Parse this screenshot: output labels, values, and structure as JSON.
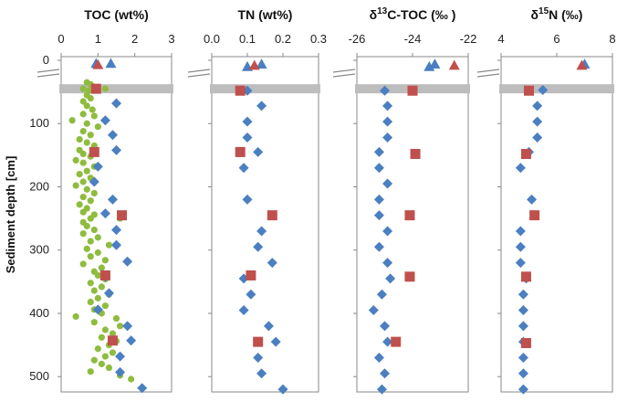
{
  "chart_data": {
    "type": "scatter",
    "ylabel": "Sediment depth [cm]",
    "ylim": [
      0,
      530
    ],
    "yticks": [
      "0",
      "100",
      "200",
      "300",
      "400",
      "500"
    ],
    "ytick_values": [
      0,
      100,
      200,
      300,
      400,
      500
    ],
    "band_depth": 45,
    "panels": [
      {
        "id": "toc",
        "title": "TOC (wt%)",
        "xlim": [
          0,
          3
        ],
        "xtick_values": [
          0,
          1,
          2,
          3
        ],
        "xticks": [
          "0",
          "1",
          "2",
          "3"
        ],
        "series": [
          {
            "name": "green-dots",
            "marker": "circle",
            "color": "#8fbc3f",
            "points": [
              [
                0.7,
                35
              ],
              [
                0.8,
                38
              ],
              [
                0.9,
                42
              ],
              [
                0.6,
                45
              ],
              [
                0.75,
                48
              ],
              [
                1.2,
                45
              ],
              [
                0.7,
                55
              ],
              [
                0.8,
                60
              ],
              [
                0.6,
                65
              ],
              [
                0.7,
                72
              ],
              [
                0.85,
                78
              ],
              [
                0.6,
                85
              ],
              [
                0.9,
                88
              ],
              [
                0.3,
                95
              ],
              [
                0.7,
                100
              ],
              [
                1.0,
                105
              ],
              [
                0.6,
                112
              ],
              [
                0.8,
                118
              ],
              [
                0.5,
                125
              ],
              [
                0.7,
                130
              ],
              [
                0.9,
                135
              ],
              [
                0.5,
                142
              ],
              [
                0.6,
                148
              ],
              [
                0.8,
                152
              ],
              [
                0.4,
                158
              ],
              [
                0.6,
                162
              ],
              [
                0.9,
                168
              ],
              [
                0.7,
                175
              ],
              [
                0.5,
                180
              ],
              [
                0.8,
                186
              ],
              [
                0.6,
                192
              ],
              [
                0.4,
                198
              ],
              [
                0.7,
                204
              ],
              [
                0.9,
                210
              ],
              [
                0.6,
                216
              ],
              [
                0.8,
                222
              ],
              [
                0.5,
                228
              ],
              [
                0.7,
                234
              ],
              [
                0.6,
                240
              ],
              [
                0.9,
                244
              ],
              [
                0.8,
                250
              ],
              [
                0.6,
                256
              ],
              [
                1.6,
                250
              ],
              [
                0.7,
                262
              ],
              [
                0.9,
                268
              ],
              [
                0.6,
                274
              ],
              [
                1.0,
                280
              ],
              [
                0.8,
                286
              ],
              [
                1.3,
                292
              ],
              [
                0.7,
                298
              ],
              [
                1.0,
                304
              ],
              [
                0.8,
                310
              ],
              [
                1.2,
                316
              ],
              [
                0.6,
                322
              ],
              [
                1.1,
                328
              ],
              [
                0.9,
                334
              ],
              [
                1.0,
                340
              ],
              [
                1.2,
                346
              ],
              [
                0.8,
                352
              ],
              [
                1.1,
                358
              ],
              [
                0.9,
                364
              ],
              [
                1.3,
                370
              ],
              [
                1.0,
                376
              ],
              [
                0.8,
                382
              ],
              [
                1.2,
                388
              ],
              [
                0.9,
                394
              ],
              [
                0.4,
                405
              ],
              [
                1.1,
                400
              ],
              [
                1.5,
                408
              ],
              [
                0.9,
                414
              ],
              [
                1.6,
                420
              ],
              [
                1.2,
                426
              ],
              [
                1.4,
                432
              ],
              [
                1.1,
                438
              ],
              [
                1.5,
                444
              ],
              [
                1.3,
                450
              ],
              [
                1.0,
                456
              ],
              [
                1.4,
                462
              ],
              [
                1.2,
                468
              ],
              [
                0.9,
                474
              ],
              [
                1.1,
                480
              ],
              [
                1.3,
                486
              ],
              [
                0.8,
                492
              ],
              [
                1.6,
                498
              ],
              [
                1.9,
                504
              ]
            ]
          },
          {
            "name": "blue-diamonds",
            "marker": "diamond",
            "color": "#4a7fc1",
            "points": [
              [
                1.5,
                68
              ],
              [
                1.2,
                95
              ],
              [
                1.4,
                118
              ],
              [
                1.5,
                142
              ],
              [
                1.0,
                168
              ],
              [
                0.9,
                192
              ],
              [
                1.4,
                220
              ],
              [
                1.2,
                242
              ],
              [
                1.5,
                268
              ],
              [
                1.5,
                292
              ],
              [
                1.8,
                318
              ],
              [
                1.2,
                342
              ],
              [
                1.3,
                368
              ],
              [
                1.0,
                394
              ],
              [
                1.8,
                420
              ],
              [
                1.9,
                443
              ],
              [
                1.6,
                468
              ],
              [
                1.6,
                493
              ],
              [
                2.2,
                518
              ]
            ]
          },
          {
            "name": "red-squares",
            "marker": "square",
            "color": "#c0504d",
            "points": [
              [
                0.95,
                45
              ],
              [
                0.9,
                145
              ],
              [
                1.65,
                245
              ],
              [
                1.2,
                340
              ],
              [
                1.4,
                443
              ]
            ]
          },
          {
            "name": "blue-triangles",
            "marker": "triangle",
            "color": "#4a7fc1",
            "points": [
              [
                0.95,
                5
              ],
              [
                1.35,
                5
              ]
            ]
          },
          {
            "name": "red-triangles",
            "marker": "triangle",
            "color": "#c0504d",
            "points": [
              [
                1.0,
                7
              ]
            ]
          }
        ]
      },
      {
        "id": "tn",
        "title": "TN (wt%)",
        "xlim": [
          0,
          0.3
        ],
        "xtick_values": [
          0,
          0.1,
          0.2,
          0.3
        ],
        "xticks": [
          "0.0",
          "0.1",
          "0.2",
          "0.3"
        ],
        "series": [
          {
            "name": "blue-diamonds",
            "marker": "diamond",
            "color": "#4a7fc1",
            "points": [
              [
                0.1,
                48
              ],
              [
                0.14,
                72
              ],
              [
                0.1,
                97
              ],
              [
                0.1,
                122
              ],
              [
                0.13,
                145
              ],
              [
                0.09,
                170
              ],
              [
                0.1,
                220
              ],
              [
                0.14,
                270
              ],
              [
                0.13,
                295
              ],
              [
                0.17,
                320
              ],
              [
                0.09,
                345
              ],
              [
                0.11,
                370
              ],
              [
                0.09,
                395
              ],
              [
                0.16,
                420
              ],
              [
                0.18,
                445
              ],
              [
                0.13,
                470
              ],
              [
                0.14,
                495
              ],
              [
                0.2,
                520
              ]
            ]
          },
          {
            "name": "red-squares",
            "marker": "square",
            "color": "#c0504d",
            "points": [
              [
                0.08,
                48
              ],
              [
                0.08,
                145
              ],
              [
                0.17,
                245
              ],
              [
                0.11,
                340
              ],
              [
                0.13,
                445
              ]
            ]
          },
          {
            "name": "blue-triangles",
            "marker": "triangle",
            "color": "#4a7fc1",
            "points": [
              [
                0.1,
                10
              ],
              [
                0.14,
                6
              ]
            ]
          },
          {
            "name": "red-triangles",
            "marker": "triangle",
            "color": "#c0504d",
            "points": [
              [
                0.12,
                8
              ]
            ]
          }
        ]
      },
      {
        "id": "d13c",
        "title": "δ13C-TOC (‰ )",
        "xlim": [
          -26,
          -22
        ],
        "xtick_values": [
          -26,
          -24,
          -22
        ],
        "xticks": [
          "-26",
          "-24",
          "-22"
        ],
        "series": [
          {
            "name": "blue-diamonds",
            "marker": "diamond",
            "color": "#4a7fc1",
            "points": [
              [
                -25.0,
                48
              ],
              [
                -24.9,
                72
              ],
              [
                -24.9,
                97
              ],
              [
                -24.9,
                122
              ],
              [
                -25.2,
                145
              ],
              [
                -25.2,
                170
              ],
              [
                -24.9,
                195
              ],
              [
                -25.2,
                220
              ],
              [
                -25.2,
                245
              ],
              [
                -24.9,
                270
              ],
              [
                -25.2,
                295
              ],
              [
                -24.9,
                320
              ],
              [
                -24.8,
                345
              ],
              [
                -25.1,
                370
              ],
              [
                -25.4,
                395
              ],
              [
                -25.0,
                420
              ],
              [
                -24.9,
                445
              ],
              [
                -25.2,
                470
              ],
              [
                -25.0,
                495
              ],
              [
                -25.1,
                520
              ]
            ]
          },
          {
            "name": "red-squares",
            "marker": "square",
            "color": "#c0504d",
            "points": [
              [
                -24.0,
                48
              ],
              [
                -23.9,
                148
              ],
              [
                -24.1,
                245
              ],
              [
                -24.1,
                342
              ],
              [
                -24.6,
                445
              ]
            ]
          },
          {
            "name": "blue-triangles",
            "marker": "triangle",
            "color": "#4a7fc1",
            "points": [
              [
                -23.4,
                10
              ],
              [
                -23.2,
                6
              ]
            ]
          },
          {
            "name": "red-triangles",
            "marker": "triangle",
            "color": "#c0504d",
            "points": [
              [
                -22.5,
                8
              ]
            ]
          }
        ]
      },
      {
        "id": "d15n",
        "title": "δ15N (‰)",
        "xlim": [
          4,
          8
        ],
        "xtick_values": [
          4,
          6,
          8
        ],
        "xticks": [
          "4",
          "6",
          "8"
        ],
        "series": [
          {
            "name": "blue-diamonds",
            "marker": "diamond",
            "color": "#4a7fc1",
            "points": [
              [
                5.5,
                47
              ],
              [
                5.3,
                72
              ],
              [
                5.3,
                97
              ],
              [
                5.3,
                122
              ],
              [
                5.0,
                145
              ],
              [
                4.7,
                170
              ],
              [
                5.1,
                220
              ],
              [
                4.7,
                270
              ],
              [
                4.7,
                295
              ],
              [
                4.7,
                320
              ],
              [
                4.9,
                345
              ],
              [
                4.8,
                370
              ],
              [
                4.8,
                395
              ],
              [
                4.8,
                420
              ],
              [
                4.8,
                445
              ],
              [
                4.8,
                470
              ],
              [
                4.8,
                495
              ],
              [
                4.8,
                520
              ]
            ]
          },
          {
            "name": "red-squares",
            "marker": "square",
            "color": "#c0504d",
            "points": [
              [
                5.0,
                48
              ],
              [
                4.9,
                148
              ],
              [
                5.2,
                245
              ],
              [
                4.9,
                342
              ],
              [
                4.9,
                447
              ]
            ]
          },
          {
            "name": "blue-triangles",
            "marker": "triangle",
            "color": "#4a7fc1",
            "points": [
              [
                7.0,
                6
              ]
            ]
          },
          {
            "name": "red-triangles",
            "marker": "triangle",
            "color": "#c0504d",
            "points": [
              [
                6.9,
                8
              ]
            ]
          }
        ]
      }
    ]
  }
}
